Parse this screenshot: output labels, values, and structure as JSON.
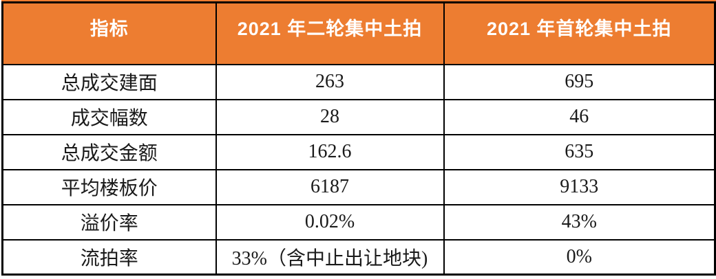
{
  "table": {
    "accent_color": "#ED7D31",
    "border_color": "#000000",
    "header_text_color": "#FFFFFF",
    "header": {
      "col1": "指标",
      "col2": "2021 年二轮集中土拍",
      "col3": "2021 年首轮集中土拍"
    },
    "rows": [
      {
        "label": "总成交建面",
        "round2": "263",
        "round1": "695"
      },
      {
        "label": "成交幅数",
        "round2": "28",
        "round1": "46"
      },
      {
        "label": "总成交金额",
        "round2": "162.6",
        "round1": "635"
      },
      {
        "label": "平均楼板价",
        "round2": "6187",
        "round1": "9133"
      },
      {
        "label": "溢价率",
        "round2": "0.02%",
        "round1": "43%"
      },
      {
        "label": "流拍率",
        "round2": "33%（含中止出让地块)",
        "round1": "0%"
      }
    ]
  },
  "chart_data": {
    "type": "table",
    "title": "",
    "columns": [
      "指标",
      "2021 年二轮集中土拍",
      "2021 年首轮集中土拍"
    ],
    "rows": [
      [
        "总成交建面",
        "263",
        "695"
      ],
      [
        "成交幅数",
        "28",
        "46"
      ],
      [
        "总成交金额",
        "162.6",
        "635"
      ],
      [
        "平均楼板价",
        "6187",
        "9133"
      ],
      [
        "溢价率",
        "0.02%",
        "43%"
      ],
      [
        "流拍率",
        "33%（含中止出让地块)",
        "0%"
      ]
    ],
    "layout_hints": {
      "header_background": "#ED7D31",
      "header_text_color": "#FFFFFF",
      "grid": "on",
      "value_alignment": "center"
    }
  }
}
